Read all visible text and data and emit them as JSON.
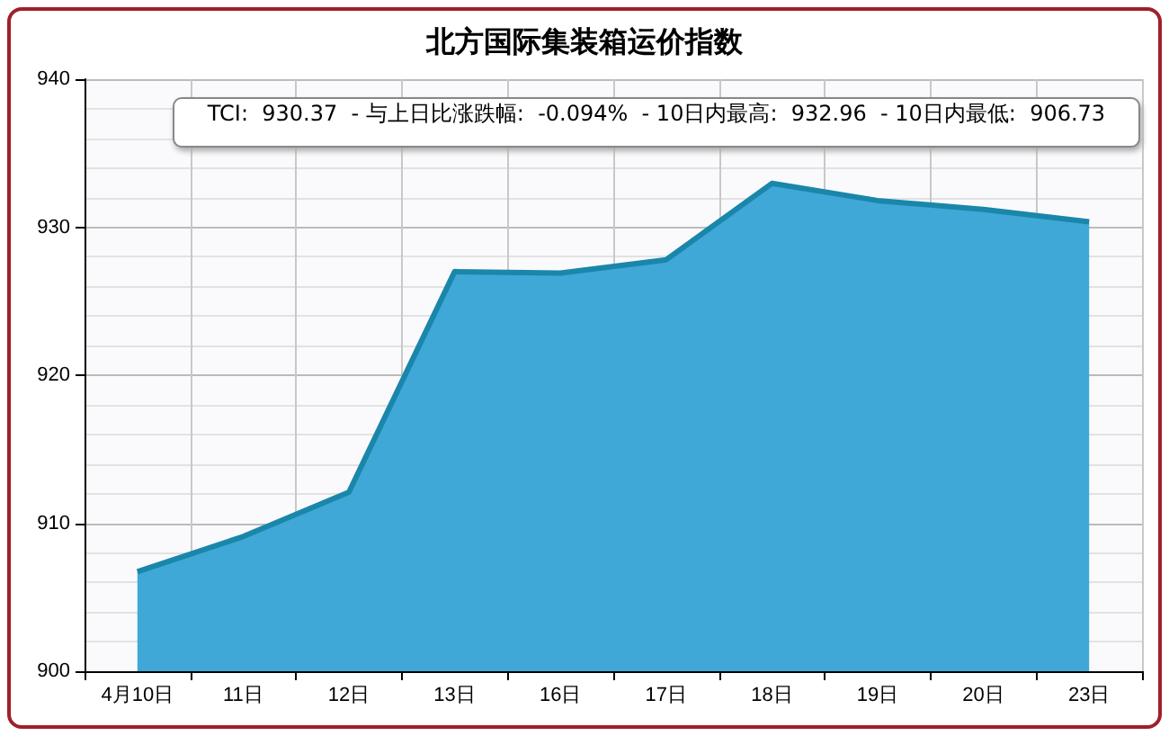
{
  "chart_data": {
    "type": "area",
    "title": "北方国际集装箱运价指数",
    "categories": [
      "4月10日",
      "11日",
      "12日",
      "13日",
      "16日",
      "17日",
      "18日",
      "19日",
      "20日",
      "23日"
    ],
    "series": [
      {
        "color": "#3fa8d6",
        "values": [
          906.73,
          909.1,
          912.1,
          927.0,
          926.9,
          927.8,
          932.96,
          931.8,
          931.2,
          930.37
        ]
      }
    ],
    "ylim": [
      900,
      940
    ],
    "yticks": [
      900,
      910,
      920,
      930,
      940
    ],
    "grid": true,
    "marker": "none",
    "line_style": "solid",
    "annotations": [
      "TCI:  930.37  - 与上日比涨跌幅:  -0.094%  - 10日内最高:  932.96  - 10日内最低:  906.73"
    ]
  }
}
